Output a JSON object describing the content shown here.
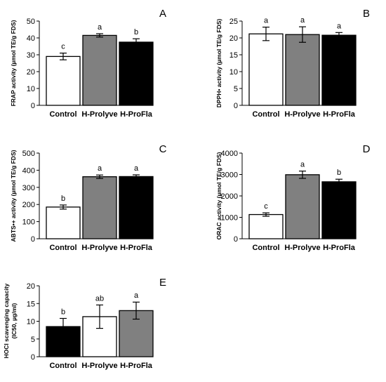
{
  "colors": {
    "white_bar": "#ffffff",
    "gray_bar": "#808080",
    "black_bar": "#000000",
    "axis": "#000000"
  },
  "chart_data": [
    {
      "type": "bar",
      "panel": "A",
      "ylabel": "FRAP activity (µmol TE/g FDS)",
      "ylim": [
        0,
        50
      ],
      "yticks": [
        "0",
        "10",
        "20",
        "30",
        "40",
        "50"
      ],
      "categories": [
        "Control",
        "H-Prolyve",
        "H-ProFla"
      ],
      "values": [
        29,
        41.5,
        37.5
      ],
      "errors": [
        2,
        1,
        2
      ],
      "letters": [
        "c",
        "a",
        "b"
      ],
      "bar_colors": [
        "white",
        "gray",
        "black"
      ]
    },
    {
      "type": "bar",
      "panel": "B",
      "ylabel": "DPPH• activity (µmol TE/g FDS)",
      "ylim": [
        0,
        25
      ],
      "yticks": [
        "0",
        "5",
        "10",
        "15",
        "20",
        "25"
      ],
      "categories": [
        "Control",
        "H-Prolyve",
        "H-ProFla"
      ],
      "values": [
        21.2,
        21,
        20.8
      ],
      "errors": [
        2,
        2.3,
        0.8
      ],
      "letters": [
        "a",
        "a",
        "a"
      ],
      "bar_colors": [
        "white",
        "gray",
        "black"
      ]
    },
    {
      "type": "bar",
      "panel": "C",
      "ylabel": "ABTS•+ activity (µmol TE/g FDS)",
      "ylim": [
        0,
        500
      ],
      "yticks": [
        "0",
        "100",
        "200",
        "300",
        "400",
        "500"
      ],
      "categories": [
        "Control",
        "H-Prolyve",
        "H-ProFla"
      ],
      "values": [
        185,
        362,
        363
      ],
      "errors": [
        12,
        10,
        10
      ],
      "letters": [
        "b",
        "a",
        "a"
      ],
      "bar_colors": [
        "white",
        "gray",
        "black"
      ]
    },
    {
      "type": "bar",
      "panel": "D",
      "ylabel": "ORAC activity (µmol TE/g FDS)",
      "ylim": [
        0,
        4000
      ],
      "yticks": [
        "0",
        "1000",
        "2000",
        "3000",
        "4000"
      ],
      "categories": [
        "Control",
        "H-Prolyve",
        "H-ProFla"
      ],
      "values": [
        1130,
        2990,
        2660
      ],
      "errors": [
        80,
        170,
        120
      ],
      "letters": [
        "c",
        "a",
        "b"
      ],
      "bar_colors": [
        "white",
        "gray",
        "black"
      ]
    },
    {
      "type": "bar",
      "panel": "E",
      "ylabel": "HOCl scavenging capacity (IC50, µg/ml)",
      "ylabel_line1": "HOCl scavenging capacity",
      "ylabel_line2": "(IC50, µg/ml)",
      "ylim": [
        0,
        20
      ],
      "yticks": [
        "0",
        "5",
        "10",
        "15",
        "20"
      ],
      "categories": [
        "Control",
        "H-Prolyve",
        "H-ProFla"
      ],
      "values": [
        8.5,
        11.3,
        13
      ],
      "errors": [
        2.3,
        3.3,
        2.4
      ],
      "letters": [
        "b",
        "ab",
        "a"
      ],
      "bar_colors": [
        "black",
        "white",
        "gray"
      ]
    }
  ]
}
